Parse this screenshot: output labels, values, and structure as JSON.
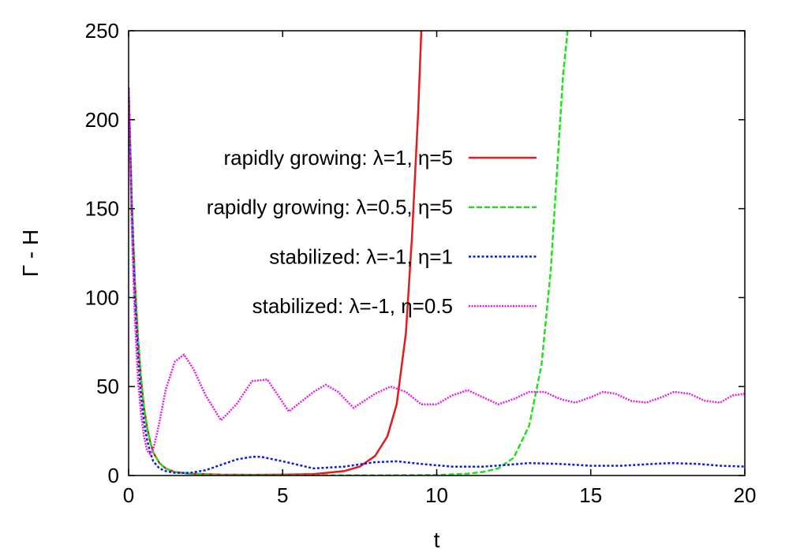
{
  "chart_data": {
    "type": "line",
    "title": "",
    "xlabel": "t",
    "ylabel": "Γ - H",
    "xlim": [
      0,
      20
    ],
    "ylim": [
      0,
      250
    ],
    "xticks": [
      "0",
      "5",
      "10",
      "15",
      "20"
    ],
    "yticks": [
      "0",
      "50",
      "100",
      "150",
      "200",
      "250"
    ],
    "grid": false,
    "legend_position": "upper-center",
    "series": [
      {
        "name": "rapidly growing: λ=1, η=5",
        "color": "#e41a1c",
        "dash": "solid",
        "x": [
          0,
          0.1,
          0.2,
          0.3,
          0.4,
          0.5,
          0.6,
          0.7,
          0.8,
          1.0,
          1.2,
          1.5,
          2,
          3,
          4,
          5,
          6,
          7,
          7.5,
          8,
          8.4,
          8.7,
          9.0,
          9.2,
          9.4,
          9.5
        ],
        "y": [
          218,
          155,
          110,
          78,
          55,
          38,
          27,
          19,
          13,
          7,
          4,
          2,
          1,
          0.5,
          0.4,
          0.5,
          0.8,
          2.5,
          5,
          11,
          22,
          40,
          80,
          135,
          205,
          250
        ]
      },
      {
        "name": "rapidly growing: λ=0.5, η=5",
        "color": "#22e01f",
        "dash": "dashed",
        "x": [
          0,
          0.1,
          0.2,
          0.3,
          0.4,
          0.5,
          0.6,
          0.7,
          0.8,
          1.0,
          1.2,
          1.5,
          2,
          3,
          5,
          8,
          10,
          11,
          11.5,
          12,
          12.5,
          13,
          13.4,
          13.7,
          13.9,
          14.1,
          14.25
        ],
        "y": [
          218,
          155,
          110,
          78,
          55,
          38,
          27,
          19,
          13,
          7,
          4,
          2,
          1,
          0.3,
          0.1,
          0.1,
          0.3,
          1,
          2,
          4,
          10,
          28,
          62,
          115,
          170,
          225,
          250
        ]
      },
      {
        "name": "stabilized: λ=-1, η=1",
        "color": "#0a1ee0",
        "dash": "dotted",
        "x": [
          0,
          0.1,
          0.2,
          0.3,
          0.4,
          0.5,
          0.6,
          0.7,
          0.8,
          1.0,
          1.2,
          1.5,
          2.0,
          2.5,
          3.0,
          3.5,
          4.0,
          4.3,
          5.0,
          6.0,
          7.0,
          8.0,
          8.7,
          9.5,
          10.5,
          11.5,
          12.3,
          13.0,
          14.0,
          15.0,
          16.0,
          17.0,
          17.6,
          18.5,
          19.2,
          20.0
        ],
        "y": [
          218,
          150,
          100,
          68,
          45,
          30,
          20,
          13,
          8,
          4,
          2.5,
          1.5,
          1.5,
          3,
          6,
          9,
          10.5,
          10.5,
          8,
          4,
          5,
          7.5,
          8,
          6.5,
          5,
          5,
          6,
          7,
          6.5,
          5.5,
          5.5,
          6.5,
          7,
          6.5,
          5.5,
          5
        ]
      },
      {
        "name": "stabilized: λ=-1, η=0.5",
        "color": "#e81ee8",
        "dash": "fine-dotted",
        "x": [
          0,
          0.1,
          0.2,
          0.3,
          0.4,
          0.5,
          0.6,
          0.7,
          0.8,
          0.9,
          1.0,
          1.2,
          1.5,
          1.8,
          2.1,
          2.5,
          3.0,
          3.5,
          4.0,
          4.5,
          5.2,
          6.0,
          6.4,
          6.8,
          7.3,
          8.0,
          8.5,
          9.0,
          9.5,
          10.0,
          10.5,
          11.0,
          11.5,
          12.0,
          12.5,
          13.0,
          13.5,
          14.0,
          14.5,
          15.0,
          15.4,
          15.8,
          16.3,
          16.8,
          17.3,
          17.7,
          18.2,
          18.7,
          19.2,
          19.6,
          20.0
        ],
        "y": [
          218,
          140,
          90,
          55,
          35,
          22,
          14,
          12,
          15,
          22,
          30,
          48,
          64,
          68,
          60,
          45,
          31,
          40,
          53,
          54,
          36,
          47,
          51,
          47,
          38,
          46,
          50,
          47,
          40,
          40,
          45,
          48,
          44,
          40,
          43,
          47,
          47,
          43,
          41,
          44,
          47,
          46,
          42,
          41,
          44,
          47,
          46,
          42,
          41,
          45,
          46
        ]
      }
    ]
  }
}
